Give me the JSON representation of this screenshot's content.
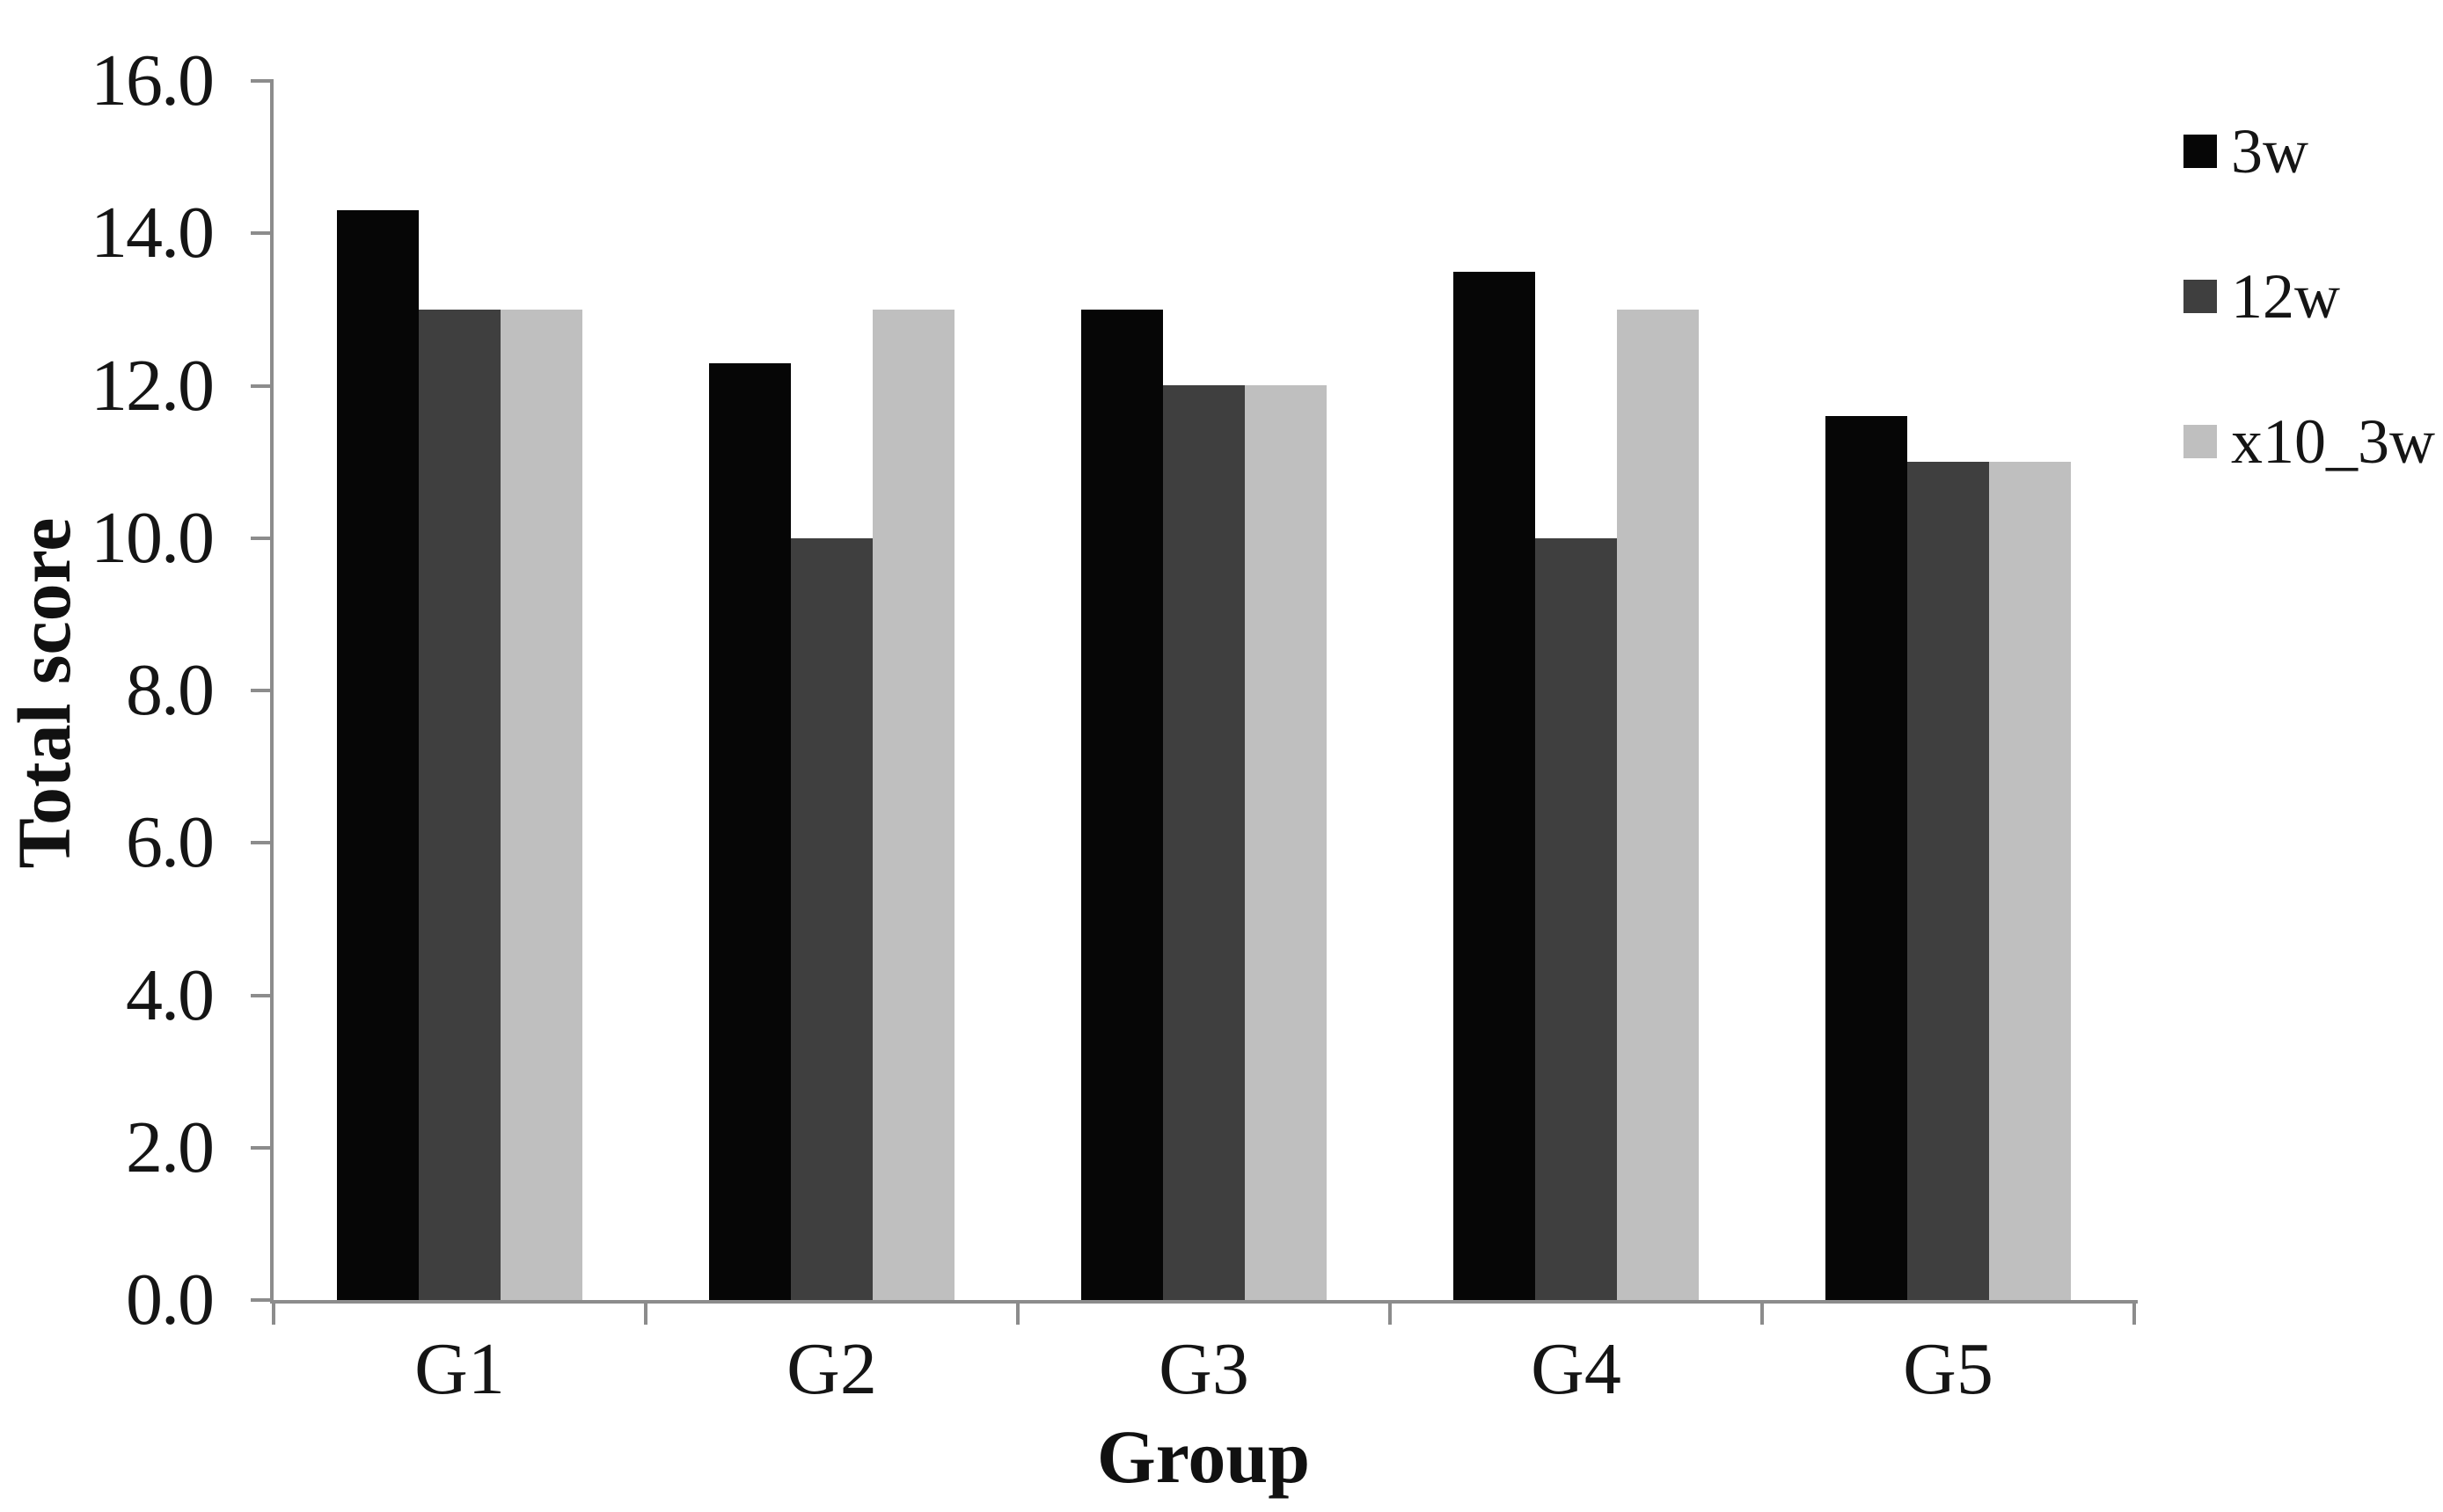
{
  "chart_data": {
    "type": "bar",
    "title": "",
    "categories": [
      "G1",
      "G2",
      "G3",
      "G4",
      "G5"
    ],
    "series": [
      {
        "name": "3w",
        "color": "#060606",
        "values": [
          14.3,
          12.3,
          13.0,
          13.5,
          11.6
        ]
      },
      {
        "name": "12w",
        "color": "#3f3f3f",
        "values": [
          13.0,
          10.0,
          12.0,
          10.0,
          11.0
        ]
      },
      {
        "name": "x10_3w",
        "color": "#bfbfbf",
        "values": [
          13.0,
          13.0,
          12.0,
          13.0,
          11.0
        ]
      }
    ],
    "xlabel": "Group",
    "ylabel": "Total score",
    "ylim": [
      0,
      16
    ],
    "ytick_step": 2,
    "ytick_labels": [
      "0.0",
      "2.0",
      "4.0",
      "6.0",
      "8.0",
      "10.0",
      "12.0",
      "14.0",
      "16.0"
    ],
    "grid": false,
    "legend_position": "right-top",
    "axis_color": "#8c8c8c",
    "background_color": "#ffffff"
  }
}
